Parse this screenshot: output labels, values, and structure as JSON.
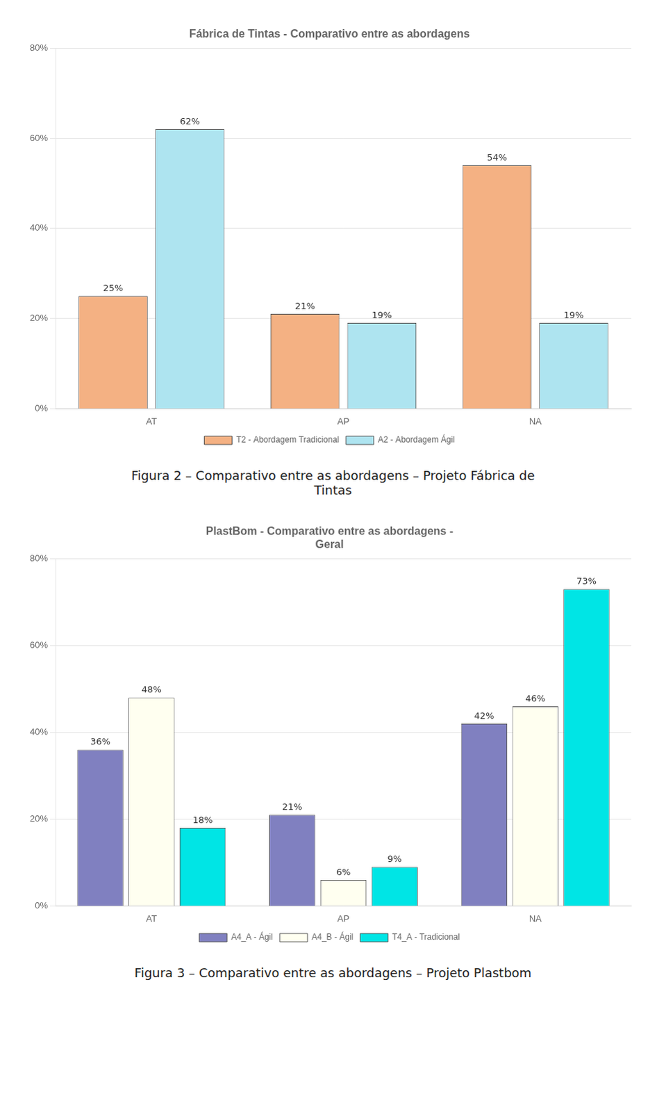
{
  "chart_data": [
    {
      "type": "bar",
      "title": "Fábrica de Tintas - Comparativo entre as abordagens",
      "categories": [
        "AT",
        "AP",
        "NA"
      ],
      "series": [
        {
          "name": "T2 - Abordagem Tradicional",
          "color": "#F4B183",
          "values": [
            25,
            21,
            54
          ],
          "value_labels": [
            "25%",
            "21%",
            "54%"
          ]
        },
        {
          "name": "A2 - Abordagem Ágil",
          "color": "#AEE4F0",
          "values": [
            62,
            19,
            19
          ],
          "value_labels": [
            "62%",
            "19%",
            "19%"
          ]
        }
      ],
      "ylim": [
        0,
        80
      ],
      "yticks": [
        {
          "value": 0,
          "label": "0%"
        },
        {
          "value": 20,
          "label": "20%"
        },
        {
          "value": 40,
          "label": "40%"
        },
        {
          "value": 60,
          "label": "60%"
        },
        {
          "value": 80,
          "label": "80%"
        }
      ],
      "grid": true,
      "legend": "bottom",
      "data_labels": true,
      "annotations": [
        "Figura 2 – Comparativo entre as abordagens – Projeto Fábrica de\nTintas"
      ]
    },
    {
      "type": "bar",
      "title": "PlastBom - Comparativo entre as abordagens -\nGeral",
      "categories": [
        "AT",
        "AP",
        "NA"
      ],
      "series": [
        {
          "name": "A4_A - Ágil",
          "color": "#8080C0",
          "values": [
            36,
            21,
            42
          ],
          "value_labels": [
            "36%",
            "21%",
            "42%"
          ]
        },
        {
          "name": "A4_B - Ágil",
          "color": "#FFFFF0",
          "values": [
            48,
            6,
            46
          ],
          "value_labels": [
            "48%",
            "6%",
            "46%"
          ]
        },
        {
          "name": "T4_A - Tradicional",
          "color": "#00E5E5",
          "values": [
            18,
            9,
            73
          ],
          "value_labels": [
            "18%",
            "9%",
            "73%"
          ]
        }
      ],
      "ylim": [
        0,
        80
      ],
      "yticks": [
        {
          "value": 0,
          "label": "0%"
        },
        {
          "value": 20,
          "label": "20%"
        },
        {
          "value": 40,
          "label": "40%"
        },
        {
          "value": 60,
          "label": "60%"
        },
        {
          "value": 80,
          "label": "80%"
        }
      ],
      "grid": true,
      "legend": "bottom",
      "data_labels": true,
      "annotations": [
        "Figura 3 – Comparativo entre as abordagens – Projeto Plastbom"
      ]
    }
  ]
}
